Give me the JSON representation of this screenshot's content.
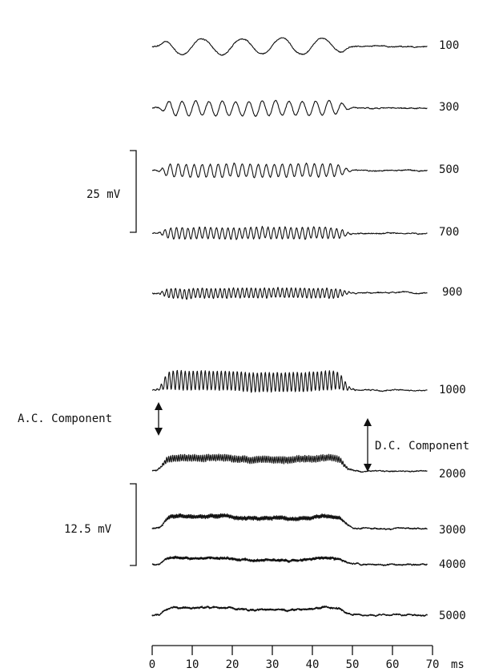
{
  "chart_data": {
    "type": "line",
    "title": "",
    "xlabel": "ms",
    "ylabel": "",
    "x_ticks": [
      "0",
      "10",
      "20",
      "30",
      "40",
      "50",
      "60",
      "70"
    ],
    "xlim": [
      0,
      70
    ],
    "stimulus_window_ms": [
      2,
      48
    ],
    "series": [
      {
        "name": "100",
        "freq_hz": 100,
        "ac_amp": 10,
        "dc_level": 0
      },
      {
        "name": "300",
        "freq_hz": 300,
        "ac_amp": 9,
        "dc_level": 0
      },
      {
        "name": "500",
        "freq_hz": 500,
        "ac_amp": 8,
        "dc_level": 0
      },
      {
        "name": "700",
        "freq_hz": 700,
        "ac_amp": 7,
        "dc_level": 0
      },
      {
        "name": "900",
        "freq_hz": 900,
        "ac_amp": 6,
        "dc_level": 0
      },
      {
        "name": "1000",
        "freq_hz": 1000,
        "ac_amp": 12,
        "dc_level": 11
      },
      {
        "name": "2000",
        "freq_hz": 2000,
        "ac_amp": 4,
        "dc_level": 15
      },
      {
        "name": "3000",
        "freq_hz": 3000,
        "ac_amp": 2,
        "dc_level": 14
      },
      {
        "name": "4000",
        "freq_hz": 4000,
        "ac_amp": 1,
        "dc_level": 7
      },
      {
        "name": "5000",
        "freq_hz": 5000,
        "ac_amp": 0.5,
        "dc_level": 8
      }
    ],
    "annotations": {
      "scale_bar_top": "25 mV",
      "scale_bar_bottom": "12.5 mV",
      "ac_component": "A.C. Component",
      "dc_component": "D.C. Component"
    }
  }
}
